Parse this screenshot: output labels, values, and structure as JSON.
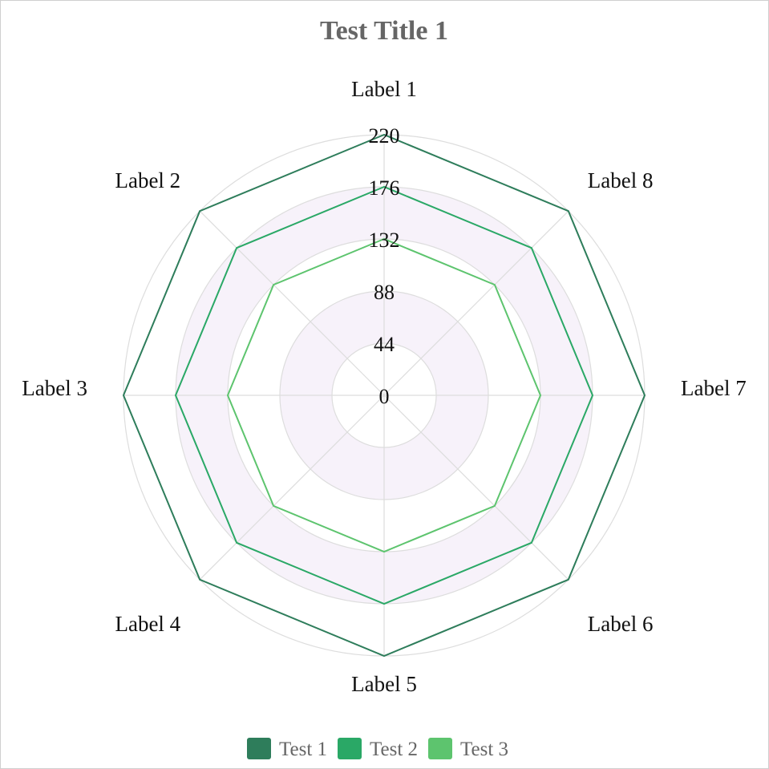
{
  "chart_data": {
    "type": "radar",
    "title": "Test Title 1",
    "labels": [
      "Label 1",
      "Label 2",
      "Label 3",
      "Label 4",
      "Label 5",
      "Label 6",
      "Label 7",
      "Label 8"
    ],
    "r_ticks": [
      0,
      44,
      88,
      132,
      176,
      220
    ],
    "r_range": [
      0,
      220
    ],
    "grid": true,
    "legend_position": "bottom",
    "band_fill": "#f7f2fa",
    "band_rings": [
      [
        44,
        88
      ],
      [
        132,
        176
      ]
    ],
    "grid_color": "#dddddd",
    "series": [
      {
        "name": "Test 1",
        "color": "#2e7d5b",
        "values": [
          220,
          220,
          220,
          220,
          220,
          220,
          220,
          220
        ]
      },
      {
        "name": "Test 2",
        "color": "#2aa866",
        "values": [
          176,
          176,
          176,
          176,
          176,
          176,
          176,
          176
        ]
      },
      {
        "name": "Test 3",
        "color": "#5dc46e",
        "values": [
          132,
          132,
          132,
          132,
          132,
          132,
          132,
          132
        ]
      }
    ]
  }
}
